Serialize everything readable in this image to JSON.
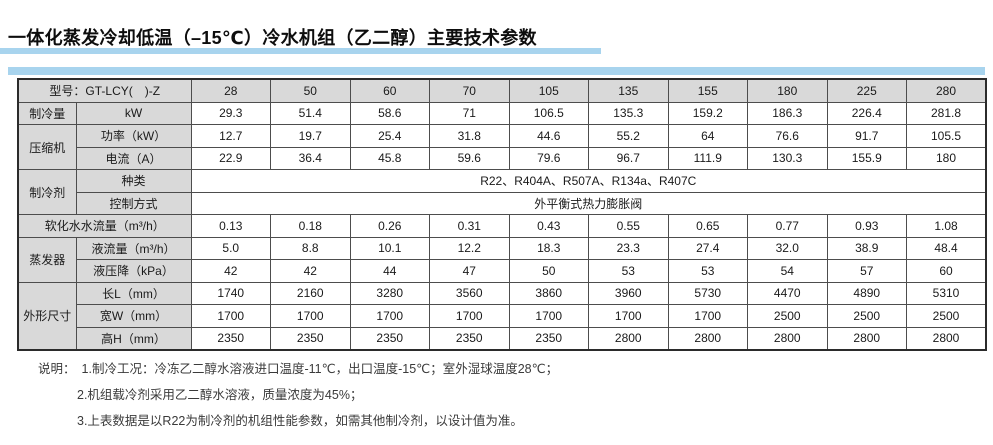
{
  "title": "一体化蒸发冷却低温（–15℃）冷水机组（乙二醇）主要技术参数",
  "colors": {
    "accent_blue": "#a8d4ee",
    "label_gray": "#d9d9d9"
  },
  "table": {
    "model_label": "型号：GT-LCY(　)-Z",
    "models": [
      "28",
      "50",
      "60",
      "70",
      "105",
      "135",
      "155",
      "180",
      "225",
      "280"
    ],
    "rows": {
      "cooling": {
        "group": "制冷量",
        "param": "kW",
        "values": [
          "29.3",
          "51.4",
          "58.6",
          "71",
          "106.5",
          "135.3",
          "159.2",
          "186.3",
          "226.4",
          "281.8"
        ]
      },
      "compressor_power": {
        "group": "压缩机",
        "param": "功率（kW）",
        "values": [
          "12.7",
          "19.7",
          "25.4",
          "31.8",
          "44.6",
          "55.2",
          "64",
          "76.6",
          "91.7",
          "105.5"
        ]
      },
      "compressor_current": {
        "param": "电流（A）",
        "values": [
          "22.9",
          "36.4",
          "45.8",
          "59.6",
          "79.6",
          "96.7",
          "111.9",
          "130.3",
          "155.9",
          "180"
        ]
      },
      "refrigerant_type": {
        "group": "制冷剂",
        "param": "种类",
        "value": "R22、R404A、R507A、R134a、R407C"
      },
      "refrigerant_control": {
        "param": "控制方式",
        "value": "外平衡式热力膨胀阀"
      },
      "soft_water": {
        "param": "软化水水流量（m³/h）",
        "values": [
          "0.13",
          "0.18",
          "0.26",
          "0.31",
          "0.43",
          "0.55",
          "0.65",
          "0.77",
          "0.93",
          "1.08"
        ]
      },
      "evap_flow": {
        "group": "蒸发器",
        "param": "液流量（m³/h）",
        "values": [
          "5.0",
          "8.8",
          "10.1",
          "12.2",
          "18.3",
          "23.3",
          "27.4",
          "32.0",
          "38.9",
          "48.4"
        ]
      },
      "evap_drop": {
        "param": "液压降（kPa）",
        "values": [
          "42",
          "42",
          "44",
          "47",
          "50",
          "53",
          "53",
          "54",
          "57",
          "60"
        ]
      },
      "dim_length": {
        "group": "外形尺寸",
        "param": "长L（mm）",
        "values": [
          "1740",
          "2160",
          "3280",
          "3560",
          "3860",
          "3960",
          "5730",
          "4470",
          "4890",
          "5310"
        ]
      },
      "dim_width": {
        "param": "宽W（mm）",
        "values": [
          "1700",
          "1700",
          "1700",
          "1700",
          "1700",
          "1700",
          "1700",
          "2500",
          "2500",
          "2500"
        ]
      },
      "dim_height": {
        "param": "高H（mm）",
        "values": [
          "2350",
          "2350",
          "2350",
          "2350",
          "2350",
          "2800",
          "2800",
          "2800",
          "2800",
          "2800"
        ]
      }
    }
  },
  "notes": {
    "label": "说明：",
    "items": [
      "1.制冷工况：冷冻乙二醇水溶液进口温度-11℃，出口温度-15℃；室外湿球温度28℃；",
      "2.机组载冷剂采用乙二醇水溶液，质量浓度为45%；",
      "3.上表数据是以R22为制冷剂的机组性能参数，如需其他制冷剂，以设计值为准。"
    ]
  }
}
